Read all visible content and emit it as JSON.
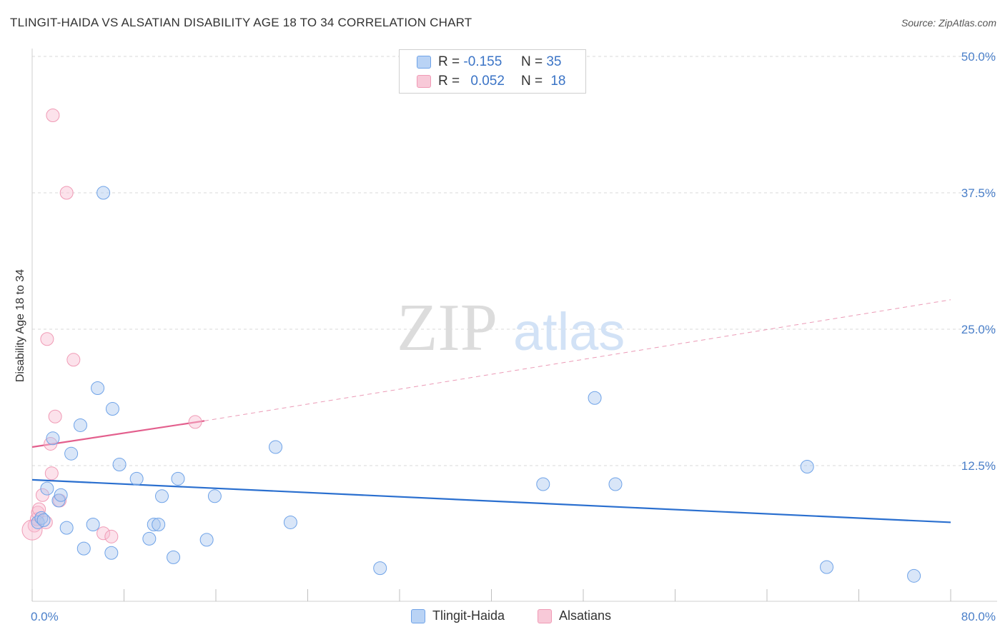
{
  "title": "TLINGIT-HAIDA VS ALSATIAN DISABILITY AGE 18 TO 34 CORRELATION CHART",
  "source": "Source: ZipAtlas.com",
  "watermark": {
    "zip": "ZIP",
    "atlas": "atlas"
  },
  "legend": {
    "r_label": "R =",
    "n_label": "N =",
    "series": [
      {
        "name": "Tlingit-Haida",
        "r": "-0.155",
        "n": "35",
        "color": "#6fa3e8",
        "fill": "#b9d3f5"
      },
      {
        "name": "Alsatians",
        "r": "0.052",
        "n": "18",
        "color": "#f09ab5",
        "fill": "#f8c9d8"
      }
    ]
  },
  "chart_data": {
    "type": "scatter",
    "title": "TLINGIT-HAIDA VS ALSATIAN DISABILITY AGE 18 TO 34 CORRELATION CHART",
    "xlabel": "",
    "ylabel": "Disability Age 18 to 34",
    "xlim": [
      0,
      80
    ],
    "ylim": [
      0,
      50
    ],
    "x_tick_labels": [
      "0.0%",
      "80.0%"
    ],
    "y_ticks": [
      12.5,
      25.0,
      37.5,
      50.0
    ],
    "y_tick_labels": [
      "12.5%",
      "25.0%",
      "37.5%",
      "50.0%"
    ],
    "series": [
      {
        "name": "Tlingit-Haida",
        "color": "#3a78d0",
        "points": [
          [
            0.5,
            7.3
          ],
          [
            0.8,
            7.7
          ],
          [
            1.0,
            7.5
          ],
          [
            1.3,
            10.4
          ],
          [
            1.8,
            15.0
          ],
          [
            2.3,
            9.3
          ],
          [
            2.5,
            9.8
          ],
          [
            3.0,
            6.8
          ],
          [
            3.4,
            13.6
          ],
          [
            4.2,
            16.2
          ],
          [
            4.5,
            4.9
          ],
          [
            5.3,
            7.1
          ],
          [
            5.7,
            19.6
          ],
          [
            6.2,
            37.5
          ],
          [
            6.9,
            4.5
          ],
          [
            7.0,
            17.7
          ],
          [
            7.6,
            12.6
          ],
          [
            9.1,
            11.3
          ],
          [
            10.2,
            5.8
          ],
          [
            10.6,
            7.1
          ],
          [
            11.0,
            7.1
          ],
          [
            11.3,
            9.7
          ],
          [
            12.3,
            4.1
          ],
          [
            12.7,
            11.3
          ],
          [
            15.2,
            5.7
          ],
          [
            15.9,
            9.7
          ],
          [
            21.2,
            14.2
          ],
          [
            22.5,
            7.3
          ],
          [
            30.3,
            3.1
          ],
          [
            44.5,
            10.8
          ],
          [
            49.0,
            18.7
          ],
          [
            50.8,
            10.8
          ],
          [
            67.5,
            12.4
          ],
          [
            69.2,
            3.2
          ],
          [
            76.8,
            2.4
          ]
        ],
        "trend": {
          "x": [
            0,
            80
          ],
          "y": [
            11.2,
            7.3
          ],
          "style": "solid"
        }
      },
      {
        "name": "Alsatians",
        "color": "#e35f8d",
        "points": [
          [
            0.2,
            7.0
          ],
          [
            0.4,
            7.6
          ],
          [
            0.5,
            8.2
          ],
          [
            0.6,
            8.5
          ],
          [
            0.9,
            9.8
          ],
          [
            1.2,
            7.3
          ],
          [
            1.3,
            24.1
          ],
          [
            1.6,
            14.5
          ],
          [
            1.7,
            11.8
          ],
          [
            1.8,
            44.6
          ],
          [
            2.0,
            17.0
          ],
          [
            2.4,
            9.3
          ],
          [
            3.0,
            37.5
          ],
          [
            3.6,
            22.2
          ],
          [
            6.2,
            6.3
          ],
          [
            6.9,
            6.0
          ],
          [
            14.2,
            16.5
          ],
          [
            0.0,
            6.6
          ]
        ],
        "trend_solid": {
          "x": [
            0,
            15
          ],
          "y": [
            14.2,
            16.6
          ]
        },
        "trend_dashed": {
          "x": [
            15,
            80
          ],
          "y": [
            16.6,
            27.7
          ]
        }
      }
    ]
  }
}
